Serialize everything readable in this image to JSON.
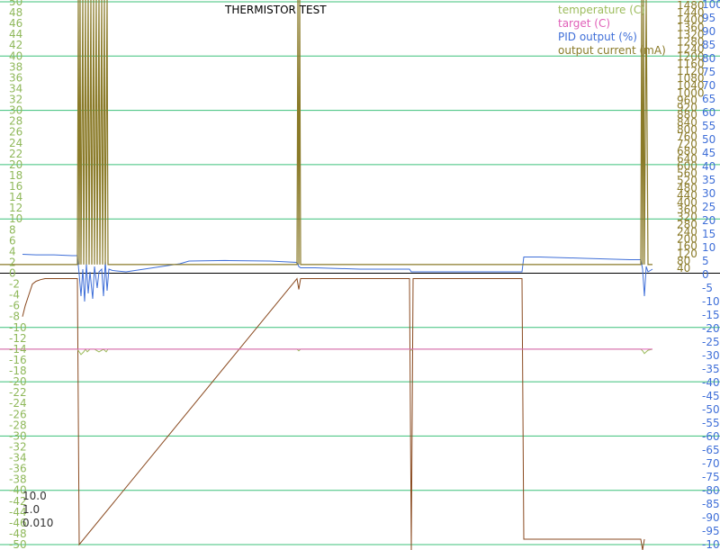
{
  "colors": {
    "temperature": "#9cbc5c",
    "target": "#e060b8",
    "pid": "#3f6fd8",
    "current": "#8a7a28",
    "current_low": "#8a4a20",
    "grid": "#3cc07a",
    "axis_temp_labels": "#8fb85a",
    "axis_pid_labels": "#3f6fd8",
    "axis_current_labels": "#8a7a28"
  },
  "chart_data": {
    "type": "line",
    "title": "THERMISTOR TEST",
    "x": [
      0,
      10,
      20,
      25,
      30,
      40,
      50,
      60,
      70,
      80,
      86,
      88,
      90,
      93,
      95,
      97,
      99,
      101,
      103,
      105,
      107,
      109,
      111,
      113,
      115,
      117,
      119,
      121,
      125,
      140,
      160,
      180,
      200,
      210,
      250,
      300,
      330,
      332,
      334,
      350,
      400,
      455,
      457,
      459,
      500,
      550,
      580,
      582,
      600,
      650,
      700,
      712,
      714,
      716,
      718,
      720,
      725
    ],
    "y_axes": {
      "temperature": {
        "range": [
          -50,
          50
        ],
        "ticks": [
          "50",
          "48",
          "46",
          "44",
          "42",
          "40",
          "38",
          "36",
          "34",
          "32",
          "30",
          "28",
          "26",
          "24",
          "22",
          "20",
          "18",
          "16",
          "14",
          "12",
          "10",
          "8",
          "6",
          "4",
          "2",
          "0",
          "-2",
          "-4",
          "-6",
          "-8",
          "-10",
          "-12",
          "-14",
          "-16",
          "-18",
          "-20",
          "-22",
          "-24",
          "-26",
          "-28",
          "-30",
          "-32",
          "-34",
          "-36",
          "-38",
          "-40",
          "-42",
          "-44",
          "-46",
          "-48",
          "-50"
        ]
      },
      "current": {
        "range": [
          40,
          1480
        ],
        "ticks": [
          "1480",
          "1440",
          "1400",
          "1360",
          "1320",
          "1280",
          "1240",
          "1200",
          "1160",
          "1120",
          "1080",
          "1040",
          "1000",
          "960",
          "920",
          "880",
          "840",
          "800",
          "760",
          "720",
          "680",
          "640",
          "600",
          "560",
          "520",
          "480",
          "440",
          "400",
          "360",
          "320",
          "280",
          "240",
          "200",
          "160",
          "120",
          "80",
          "40"
        ]
      },
      "pid": {
        "range": [
          -100,
          100
        ],
        "ticks": [
          "100",
          "95",
          "90",
          "85",
          "80",
          "75",
          "70",
          "65",
          "60",
          "55",
          "50",
          "45",
          "40",
          "35",
          "30",
          "25",
          "20",
          "15",
          "10",
          "5",
          "0",
          "-5",
          "-10",
          "-15",
          "-20",
          "-25",
          "-30",
          "-35",
          "-40",
          "-45",
          "-50",
          "-55",
          "-60",
          "-65",
          "-70",
          "-75",
          "-80",
          "-85",
          "-90",
          "-95",
          "-100"
        ]
      }
    },
    "series": [
      {
        "name": "temperature (C)",
        "axis": "temperature",
        "x": [
          0,
          86,
          88,
          90,
          93,
          95,
          97,
          100,
          105,
          110,
          115,
          118,
          120,
          125,
          200,
          330,
          332,
          334,
          455,
          457,
          459,
          580,
          582,
          700,
          712,
          714,
          716,
          718,
          720,
          725
        ],
        "y": [
          -14,
          -14,
          -14.5,
          -15,
          -14.5,
          -14,
          -14.5,
          -14,
          -14,
          -14.5,
          -14,
          -14.5,
          -14,
          -14,
          -14,
          -14,
          -14.3,
          -14,
          -14,
          -14.2,
          -14,
          -14,
          -14,
          -14,
          -14,
          -14.3,
          -14.8,
          -14.5,
          -14.2,
          -14
        ]
      },
      {
        "name": "target (C)",
        "axis": "target",
        "x": [
          0,
          88,
          90,
          332,
          334,
          725
        ],
        "y": [
          -14,
          -14,
          -14,
          -14,
          -14,
          -14
        ]
      },
      {
        "name": "PID output (%)",
        "axis": "pid",
        "x": [
          25,
          40,
          60,
          80,
          86,
          88,
          90,
          92,
          94,
          96,
          98,
          100,
          103,
          105,
          108,
          110,
          113,
          115,
          117,
          119,
          121,
          125,
          140,
          160,
          180,
          200,
          210,
          250,
          300,
          330,
          332,
          334,
          350,
          400,
          455,
          457,
          459,
          500,
          550,
          580,
          582,
          600,
          650,
          700,
          712,
          714,
          716,
          718,
          720,
          725
        ],
        "y": [
          7.5,
          7.3,
          7.3,
          7,
          7,
          0,
          -8,
          2,
          -10,
          4,
          -7,
          1,
          -9,
          3,
          -5,
          1,
          2,
          -8,
          5,
          -6,
          2,
          1.5,
          1,
          2,
          3,
          4,
          5,
          5.2,
          5,
          4.5,
          3,
          2.5,
          2.5,
          2,
          2,
          1,
          1,
          1,
          1,
          1,
          6.5,
          6.5,
          6,
          5.5,
          5.5,
          2,
          -8,
          3,
          1,
          2
        ]
      },
      {
        "name": "output current (mA)",
        "axis": "current",
        "x": [
          0,
          86,
          87,
          88,
          89,
          90,
          92,
          93,
          95,
          96,
          98,
          99,
          101,
          102,
          104,
          105,
          107,
          108,
          110,
          111,
          113,
          114,
          116,
          117,
          119,
          120,
          125,
          330,
          331,
          332,
          333,
          334,
          690,
          700,
          712,
          713,
          714,
          715,
          716,
          718,
          720,
          725
        ],
        "y": [
          60,
          60,
          1520,
          60,
          1520,
          60,
          1520,
          60,
          1520,
          60,
          1520,
          60,
          1520,
          60,
          1520,
          60,
          1520,
          60,
          1520,
          60,
          1520,
          60,
          1520,
          60,
          1520,
          60,
          60,
          60,
          1520,
          60,
          1520,
          60,
          60,
          60,
          60,
          1520,
          60,
          1520,
          60,
          1520,
          60,
          60
        ]
      }
    ],
    "low_series": {
      "name": "",
      "axis": "temperature",
      "x": [
        25,
        28,
        32,
        36,
        40,
        45,
        50,
        60,
        86,
        88,
        330,
        332,
        334,
        455,
        457,
        459,
        580,
        582,
        712,
        714,
        716
      ],
      "y": [
        -8,
        -6,
        -4,
        -2,
        -1.5,
        -1.2,
        -1,
        -1,
        -1,
        -50,
        -1,
        -3,
        -1,
        -1,
        -52,
        -1,
        -1,
        -49,
        -49,
        -52,
        -49
      ]
    },
    "legend": {
      "placement": "top-right",
      "entries": [
        "temperature (C)",
        "target (C)",
        "PID output (%)",
        "output current (mA)"
      ]
    },
    "annotations": [
      "10.0",
      "1.0",
      "0.010"
    ],
    "grid": true
  }
}
